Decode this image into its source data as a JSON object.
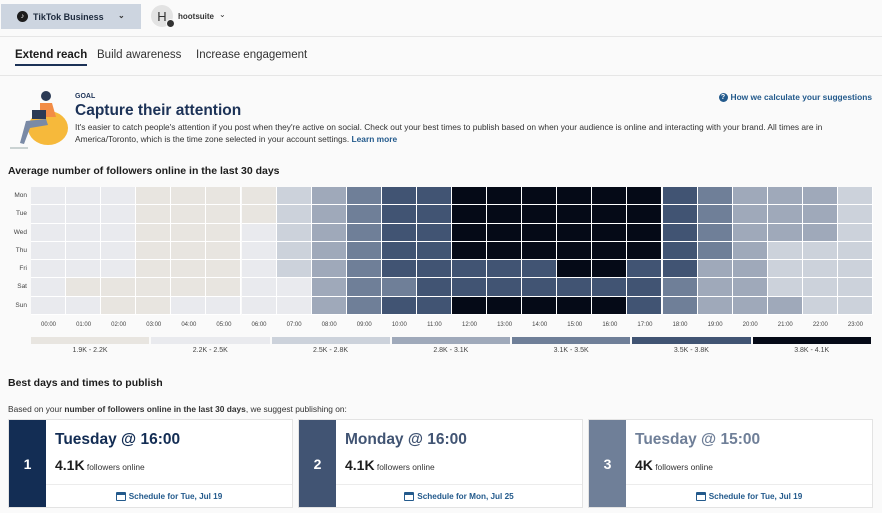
{
  "topbar": {
    "account": "TikTok Business",
    "avatar_letter": "H",
    "org": "hootsuite"
  },
  "tabs": [
    {
      "label": "Extend reach",
      "active": true
    },
    {
      "label": "Build awareness"
    },
    {
      "label": "Increase engagement"
    }
  ],
  "goal": {
    "eyebrow": "GOAL",
    "title": "Capture their attention",
    "desc": "It's easier to catch people's attention if you post when they're active on social. Check out your best times to publish based on when your audience is online and interacting with your brand. All times are in America/Toronto, which is the time zone selected in your account settings.",
    "learn_more": "Learn more",
    "help_link": "How we calculate your suggestions"
  },
  "heatmap": {
    "title": "Average number of followers online in the last 30 days",
    "days": [
      "Mon",
      "Tue",
      "Wed",
      "Thu",
      "Fri",
      "Sat",
      "Sun"
    ],
    "hours": [
      "00:00",
      "01:00",
      "02:00",
      "03:00",
      "04:00",
      "05:00",
      "06:00",
      "07:00",
      "08:00",
      "09:00",
      "10:00",
      "11:00",
      "12:00",
      "13:00",
      "14:00",
      "15:00",
      "16:00",
      "17:00",
      "18:00",
      "19:00",
      "20:00",
      "21:00",
      "22:00",
      "23:00"
    ],
    "legend": [
      {
        "label": "1.9K - 2.2K",
        "color": "#e8e5e0"
      },
      {
        "label": "2.2K - 2.5K",
        "color": "#e9eaee"
      },
      {
        "label": "2.5K - 2.8K",
        "color": "#ccd2db"
      },
      {
        "label": "2.8K - 3.1K",
        "color": "#9fa9ba"
      },
      {
        "label": "3.1K - 3.5K",
        "color": "#6f7f98"
      },
      {
        "label": "3.5K - 3.8K",
        "color": "#415473"
      },
      {
        "label": "3.8K - 4.1K",
        "color": "#050a17"
      }
    ],
    "levels": [
      [
        1,
        1,
        1,
        0,
        0,
        0,
        0,
        2,
        3,
        4,
        5,
        5,
        6,
        6,
        6,
        6,
        6,
        6,
        5,
        4,
        3,
        3,
        3,
        2
      ],
      [
        1,
        1,
        1,
        0,
        0,
        0,
        0,
        2,
        3,
        4,
        5,
        5,
        6,
        6,
        6,
        6,
        6,
        6,
        5,
        4,
        3,
        3,
        3,
        2
      ],
      [
        1,
        1,
        1,
        0,
        0,
        0,
        1,
        2,
        3,
        4,
        5,
        5,
        6,
        6,
        6,
        6,
        6,
        6,
        5,
        4,
        3,
        3,
        3,
        2
      ],
      [
        1,
        1,
        1,
        0,
        0,
        0,
        1,
        2,
        3,
        4,
        5,
        5,
        6,
        6,
        6,
        6,
        6,
        6,
        5,
        4,
        3,
        2,
        2,
        2
      ],
      [
        1,
        1,
        1,
        0,
        0,
        0,
        1,
        2,
        3,
        4,
        5,
        5,
        5,
        5,
        5,
        6,
        6,
        5,
        5,
        3,
        3,
        2,
        2,
        2
      ],
      [
        1,
        0,
        0,
        0,
        0,
        0,
        1,
        1,
        3,
        4,
        4,
        5,
        5,
        5,
        5,
        5,
        5,
        5,
        4,
        3,
        3,
        2,
        2,
        2
      ],
      [
        1,
        1,
        0,
        0,
        1,
        1,
        1,
        1,
        3,
        4,
        5,
        5,
        6,
        6,
        6,
        6,
        6,
        5,
        4,
        3,
        3,
        3,
        2,
        2
      ]
    ]
  },
  "best": {
    "title": "Best days and times to publish",
    "based_pre": "Based on your ",
    "based_bold": "number of followers online in the last 30 days",
    "based_post": ", we suggest publishing on:",
    "cards": [
      {
        "rank": "1",
        "when": "Tuesday @ 16:00",
        "count": "4.1K",
        "count_label": "followers online",
        "schedule": "Schedule for Tue, Jul 19",
        "color": "#132d54"
      },
      {
        "rank": "2",
        "when": "Monday @ 16:00",
        "count": "4.1K",
        "count_label": "followers online",
        "schedule": "Schedule for Mon, Jul 25",
        "color": "#415473"
      },
      {
        "rank": "3",
        "when": "Tuesday @ 15:00",
        "count": "4K",
        "count_label": "followers online",
        "schedule": "Schedule for Tue, Jul 19",
        "color": "#6f7f98"
      }
    ]
  }
}
